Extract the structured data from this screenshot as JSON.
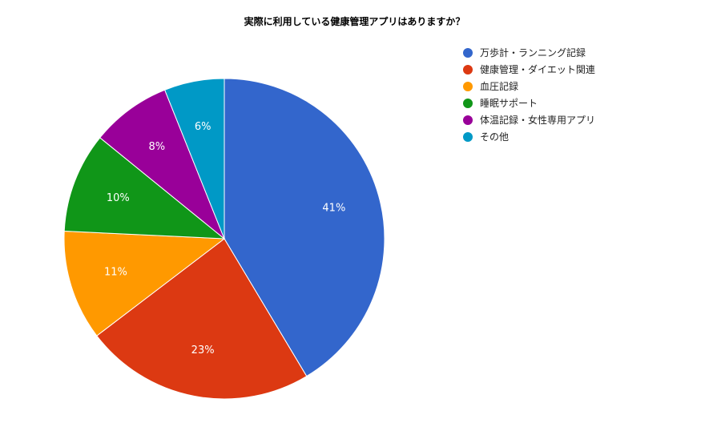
{
  "chart_data": {
    "type": "pie",
    "title": "実際に利用している健康管理アプリはありますか？",
    "legend_position": "right",
    "slices": [
      {
        "name": "万歩計・ランニング記録",
        "value": 41,
        "label": "41%",
        "color": "#3366cc"
      },
      {
        "name": "健康管理・ダイエット関連",
        "value": 23,
        "label": "23%",
        "color": "#dc3912"
      },
      {
        "name": "血圧記録",
        "value": 11,
        "label": "11%",
        "color": "#ff9900"
      },
      {
        "name": "睡眠サポート",
        "value": 10,
        "label": "10%",
        "color": "#109618"
      },
      {
        "name": "体温記録・女性専用アプリ",
        "value": 8,
        "label": "8%",
        "color": "#990099"
      },
      {
        "name": "その他",
        "value": 6,
        "label": "6%",
        "color": "#0099c6"
      }
    ]
  }
}
